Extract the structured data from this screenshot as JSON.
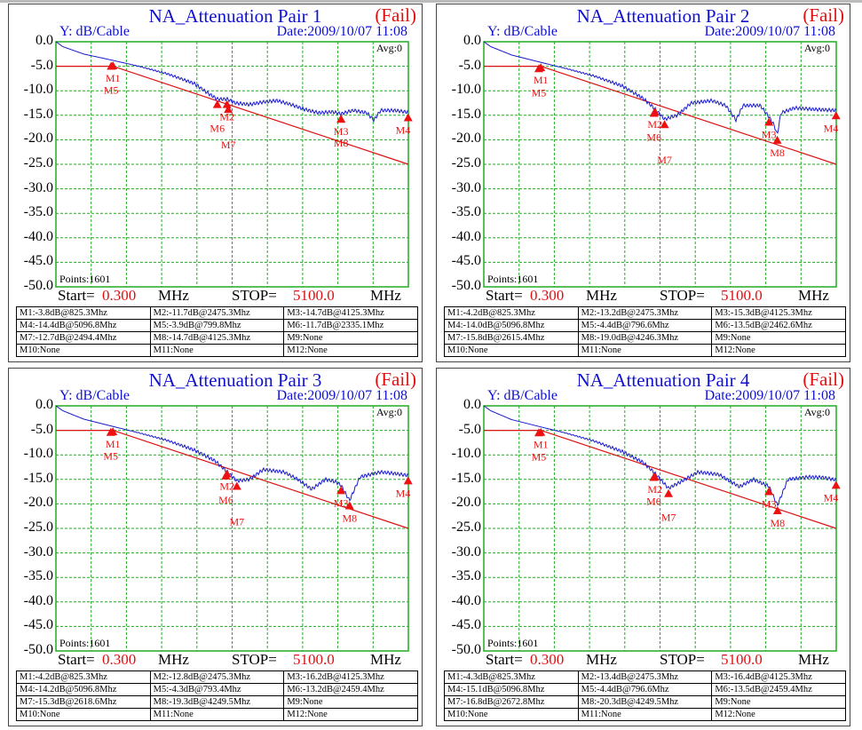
{
  "colors": {
    "trace": "#1a1acc",
    "limit": "#dd1111",
    "grid": "#22aa22",
    "marker": "#ee1111"
  },
  "common": {
    "ylabel": "Y: dB/Cable",
    "date": "Date:2009/10/07 11:08",
    "status": "(Fail)",
    "avg": "Avg:0",
    "points": "Points:1601",
    "start_label": "Start=",
    "start_value": "0.300",
    "stop_label": "STOP=",
    "stop_value": "5100.0",
    "unit": "MHz"
  },
  "chart_data": [
    {
      "type": "line",
      "title": "NA_Attenuation Pair 1",
      "xlim": [
        0.3,
        5100
      ],
      "ylim": [
        -50,
        0
      ],
      "yticks": [
        "0.0",
        "-5.0",
        "-10.0",
        "-15.0",
        "-20.0",
        "-25.0",
        "-30.0",
        "-35.0",
        "-40.0",
        "-45.0",
        "-50.0"
      ],
      "grid": true,
      "limit": [
        [
          0.3,
          -5
        ],
        [
          825.3,
          -5
        ],
        [
          5100,
          -25
        ]
      ],
      "trace": [
        [
          0,
          0
        ],
        [
          100,
          -1
        ],
        [
          400,
          -2.5
        ],
        [
          825,
          -3.8
        ],
        [
          1200,
          -5
        ],
        [
          1600,
          -6.5
        ],
        [
          2000,
          -8.5
        ],
        [
          2200,
          -10.5
        ],
        [
          2335,
          -11.7
        ],
        [
          2475,
          -11.7
        ],
        [
          2600,
          -12.5
        ],
        [
          2800,
          -12.8
        ],
        [
          3000,
          -12.3
        ],
        [
          3200,
          -12
        ],
        [
          3400,
          -12.8
        ],
        [
          3600,
          -13.8
        ],
        [
          3800,
          -14.5
        ],
        [
          4000,
          -14.3
        ],
        [
          4125,
          -14.7
        ],
        [
          4300,
          -14
        ],
        [
          4500,
          -14.5
        ],
        [
          4600,
          -16
        ],
        [
          4700,
          -14
        ],
        [
          4900,
          -14
        ],
        [
          5100,
          -14.4
        ]
      ],
      "markers": [
        "M1:-3.8dB@825.3Mhz",
        "M2:-11.7dB@2475.3Mhz",
        "M3:-14.7dB@4125.3Mhz",
        "M4:-14.4dB@5096.8Mhz",
        "M5:-3.9dB@799.8Mhz",
        "M6:-11.7dB@2335.1Mhz",
        "M7:-12.7dB@2494.4Mhz",
        "M8:-14.7dB@4125.3Mhz",
        "M9:None",
        "M10:None",
        "M11:None",
        "M12:None"
      ]
    },
    {
      "type": "line",
      "title": "NA_Attenuation Pair 2",
      "xlim": [
        0.3,
        5100
      ],
      "ylim": [
        -50,
        0
      ],
      "yticks": [
        "0.0",
        "-5.0",
        "-10.0",
        "-15.0",
        "-20.0",
        "-25.0",
        "-30.0",
        "-35.0",
        "-40.0",
        "-45.0",
        "-50.0"
      ],
      "grid": true,
      "limit": [
        [
          0.3,
          -5
        ],
        [
          825.3,
          -5
        ],
        [
          5100,
          -25
        ]
      ],
      "trace": [
        [
          0,
          0
        ],
        [
          100,
          -1
        ],
        [
          400,
          -2.7
        ],
        [
          825,
          -4.2
        ],
        [
          1200,
          -5.5
        ],
        [
          1600,
          -7
        ],
        [
          2000,
          -9
        ],
        [
          2300,
          -11.5
        ],
        [
          2462,
          -13.5
        ],
        [
          2615,
          -15.8
        ],
        [
          2800,
          -15
        ],
        [
          3000,
          -12.5
        ],
        [
          3300,
          -12
        ],
        [
          3500,
          -13
        ],
        [
          3650,
          -16
        ],
        [
          3750,
          -13
        ],
        [
          4000,
          -13
        ],
        [
          4125,
          -15.3
        ],
        [
          4200,
          -17
        ],
        [
          4246,
          -19
        ],
        [
          4300,
          -14.5
        ],
        [
          4500,
          -13.5
        ],
        [
          4800,
          -13.8
        ],
        [
          5100,
          -14
        ]
      ],
      "markers": [
        "M1:-4.2dB@825.3Mhz",
        "M2:-13.2dB@2475.3Mhz",
        "M3:-15.3dB@4125.3Mhz",
        "M4:-14.0dB@5096.8Mhz",
        "M5:-4.4dB@796.6Mhz",
        "M6:-13.5dB@2462.6Mhz",
        "M7:-15.8dB@2615.4Mhz",
        "M8:-19.0dB@4246.3Mhz",
        "M9:None",
        "M10:None",
        "M11:None",
        "M12:None"
      ]
    },
    {
      "type": "line",
      "title": "NA_Attenuation Pair 3",
      "xlim": [
        0.3,
        5100
      ],
      "ylim": [
        -50,
        0
      ],
      "yticks": [
        "0.0",
        "-5.0",
        "-10.0",
        "-15.0",
        "-20.0",
        "-25.0",
        "-30.0",
        "-35.0",
        "-40.0",
        "-45.0",
        "-50.0"
      ],
      "grid": true,
      "limit": [
        [
          0.3,
          -5
        ],
        [
          825.3,
          -5
        ],
        [
          5100,
          -25
        ]
      ],
      "trace": [
        [
          0,
          0
        ],
        [
          100,
          -1
        ],
        [
          400,
          -2.7
        ],
        [
          825,
          -4.2
        ],
        [
          1200,
          -5.5
        ],
        [
          1600,
          -7
        ],
        [
          2000,
          -9
        ],
        [
          2300,
          -11.2
        ],
        [
          2459,
          -13.2
        ],
        [
          2618,
          -15.3
        ],
        [
          2800,
          -15
        ],
        [
          3000,
          -13
        ],
        [
          3300,
          -13.5
        ],
        [
          3500,
          -15
        ],
        [
          3700,
          -17
        ],
        [
          3900,
          -15
        ],
        [
          4050,
          -15.5
        ],
        [
          4125,
          -16.2
        ],
        [
          4249,
          -19.3
        ],
        [
          4400,
          -14.5
        ],
        [
          4700,
          -13.5
        ],
        [
          4900,
          -13.8
        ],
        [
          5100,
          -14.2
        ]
      ],
      "markers": [
        "M1:-4.2dB@825.3Mhz",
        "M2:-12.8dB@2475.3Mhz",
        "M3:-16.2dB@4125.3Mhz",
        "M4:-14.2dB@5096.8Mhz",
        "M5:-4.3dB@793.4Mhz",
        "M6:-13.2dB@2459.4Mhz",
        "M7:-15.3dB@2618.6Mhz",
        "M8:-19.3dB@4249.5Mhz",
        "M9:None",
        "M10:None",
        "M11:None",
        "M12:None"
      ]
    },
    {
      "type": "line",
      "title": "NA_Attenuation Pair 4",
      "xlim": [
        0.3,
        5100
      ],
      "ylim": [
        -50,
        0
      ],
      "yticks": [
        "0.0",
        "-5.0",
        "-10.0",
        "-15.0",
        "-20.0",
        "-25.0",
        "-30.0",
        "-35.0",
        "-40.0",
        "-45.0",
        "-50.0"
      ],
      "grid": true,
      "limit": [
        [
          0.3,
          -5
        ],
        [
          825.3,
          -5
        ],
        [
          5100,
          -25
        ]
      ],
      "trace": [
        [
          0,
          0
        ],
        [
          100,
          -1
        ],
        [
          400,
          -2.8
        ],
        [
          825,
          -4.3
        ],
        [
          1200,
          -5.6
        ],
        [
          1600,
          -7.2
        ],
        [
          2000,
          -9.3
        ],
        [
          2300,
          -11.5
        ],
        [
          2459,
          -13.5
        ],
        [
          2672,
          -16.8
        ],
        [
          2850,
          -15.5
        ],
        [
          3100,
          -13.5
        ],
        [
          3400,
          -14
        ],
        [
          3700,
          -16.5
        ],
        [
          3900,
          -15
        ],
        [
          4125,
          -16.4
        ],
        [
          4249,
          -20.3
        ],
        [
          4400,
          -15
        ],
        [
          4700,
          -14.5
        ],
        [
          4900,
          -14.6
        ],
        [
          5100,
          -15.1
        ]
      ],
      "markers": [
        "M1:-4.3dB@825.3Mhz",
        "M2:-13.4dB@2475.3Mhz",
        "M3:-16.4dB@4125.3Mhz",
        "M4:-15.1dB@5096.8Mhz",
        "M5:-4.4dB@796.6Mhz",
        "M6:-13.5dB@2459.4Mhz",
        "M7:-16.8dB@2672.8Mhz",
        "M8:-20.3dB@4249.5Mhz",
        "M9:None",
        "M10:None",
        "M11:None",
        "M12:None"
      ]
    }
  ]
}
